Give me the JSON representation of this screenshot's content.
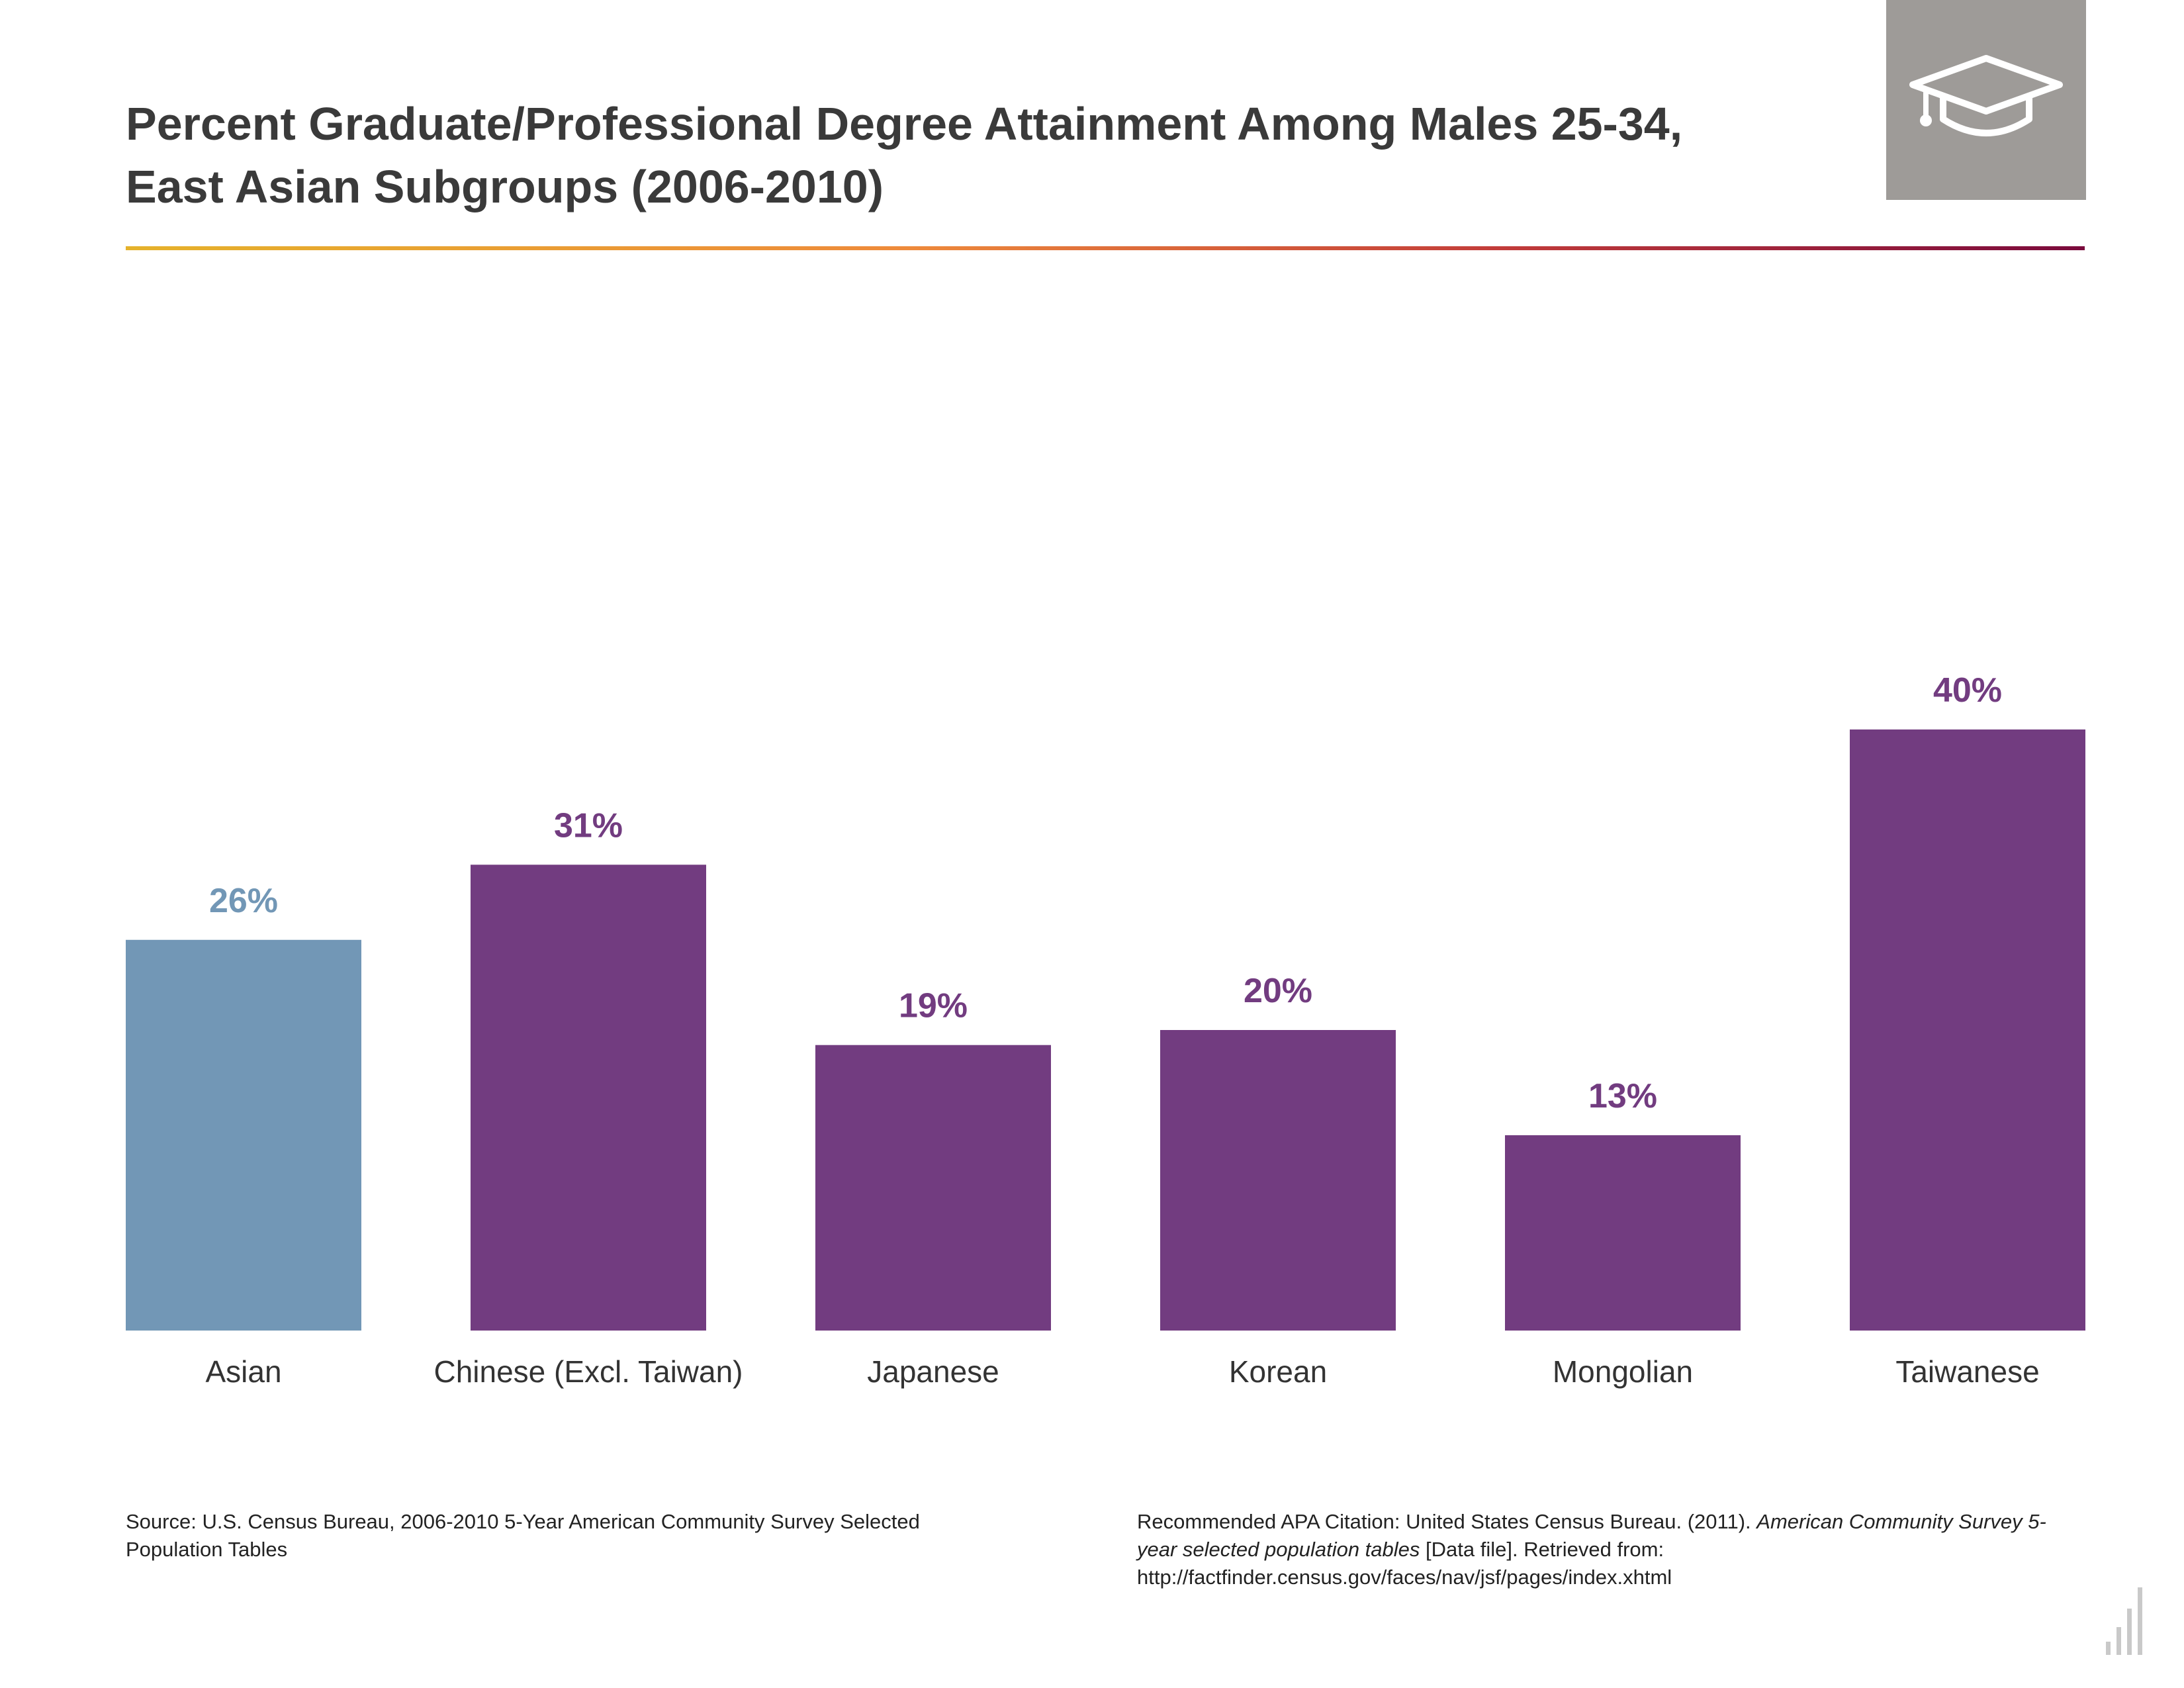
{
  "title": {
    "line1": "Percent Graduate/Professional Degree Attainment Among Males 25-34,",
    "line2": "East Asian Subgroups (2006-2010)"
  },
  "colors": {
    "primary_bar": "#723c80",
    "comparison_bar": "#7297b6",
    "icon_box": "#9e9b98",
    "title_text": "#3a3a3a"
  },
  "icons": {
    "header": "graduation-cap-icon",
    "corner": "bar-chart-logo-icon"
  },
  "chart_data": {
    "type": "bar",
    "categories": [
      "Asian",
      "Chinese (Excl. Taiwan)",
      "Japanese",
      "Korean",
      "Mongolian",
      "Taiwanese"
    ],
    "values": [
      26,
      31,
      19,
      20,
      13,
      40
    ],
    "value_labels": [
      "26%",
      "31%",
      "19%",
      "20%",
      "13%",
      "40%"
    ],
    "highlight": [
      "comparison",
      "subgroup",
      "subgroup",
      "subgroup",
      "subgroup",
      "subgroup"
    ],
    "ylim": [
      0,
      40
    ],
    "grid": false,
    "legend": "none",
    "xlabel": "",
    "ylabel": ""
  },
  "footer": {
    "source": "Source: U.S. Census Bureau, 2006-2010 5-Year American Community Survey Selected Population Tables",
    "citation_prefix": "Recommended APA Citation: United States Census Bureau. (2011). ",
    "citation_title": "American Community Survey 5-year selected population tables",
    "citation_suffix": " [Data file]. Retrieved from: http://factfinder.census.gov/faces/nav/jsf/pages/index.xhtml"
  }
}
